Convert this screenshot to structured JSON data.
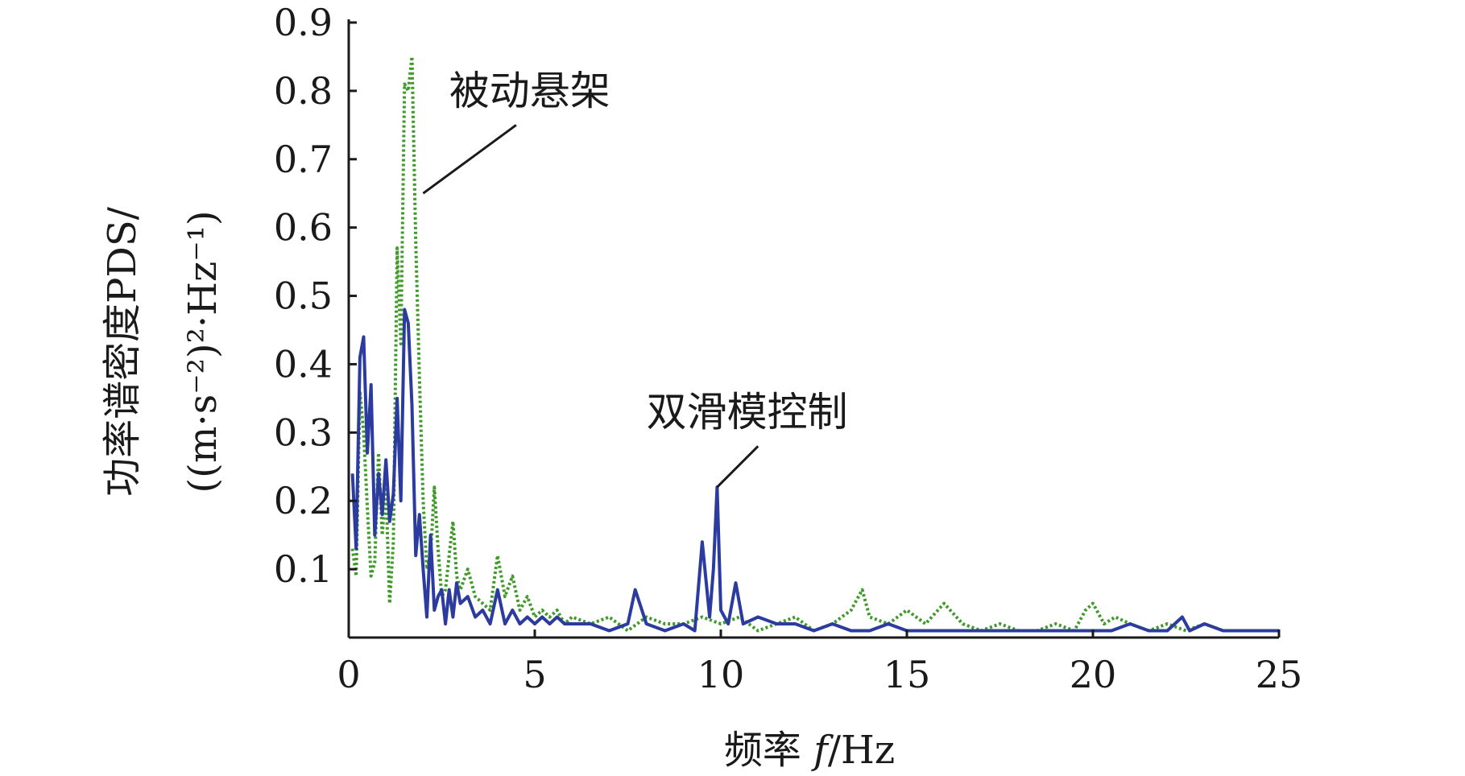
{
  "chart_data": {
    "type": "line",
    "xlabel_prefix": "频率 ",
    "xlabel_var": "f",
    "xlabel_unit": "/Hz",
    "ylabel_line1": "功率谱密度PDS/",
    "ylabel_line2": "((m·s⁻²)²·Hz⁻¹)",
    "xlim": [
      0,
      25
    ],
    "ylim": [
      0,
      0.9
    ],
    "xticks": [
      0,
      5,
      10,
      15,
      20,
      25
    ],
    "xtick_labels": [
      "0",
      "5",
      "10",
      "15",
      "20",
      "25"
    ],
    "yticks": [
      0.1,
      0.2,
      0.3,
      0.4,
      0.5,
      0.6,
      0.7,
      0.8,
      0.9
    ],
    "ytick_labels": [
      "0.1",
      "0.2",
      "0.3",
      "0.4",
      "0.5",
      "0.6",
      "0.7",
      "0.8",
      "0.9"
    ],
    "grid": false,
    "annotations": [
      {
        "text": "被动悬架",
        "series": 0
      },
      {
        "text": "双滑模控制",
        "series": 1
      }
    ],
    "series": [
      {
        "style": "dotted",
        "color": "#3f9a2a",
        "x": [
          0.1,
          0.2,
          0.3,
          0.4,
          0.5,
          0.6,
          0.7,
          0.8,
          0.9,
          1.0,
          1.1,
          1.2,
          1.3,
          1.4,
          1.5,
          1.6,
          1.7,
          1.8,
          1.9,
          2.0,
          2.1,
          2.2,
          2.3,
          2.4,
          2.5,
          2.6,
          2.7,
          2.8,
          2.9,
          3.0,
          3.2,
          3.4,
          3.6,
          3.8,
          4.0,
          4.2,
          4.4,
          4.6,
          4.8,
          5.0,
          5.2,
          5.4,
          5.6,
          5.8,
          6.0,
          6.5,
          7.0,
          7.5,
          8.0,
          8.5,
          9.0,
          9.5,
          10.0,
          10.5,
          11.0,
          11.5,
          12.0,
          12.5,
          13.0,
          13.5,
          13.8,
          14.0,
          14.5,
          15.0,
          15.5,
          16.0,
          16.5,
          17.0,
          17.5,
          18.0,
          18.5,
          19.0,
          19.5,
          19.8,
          20.0,
          20.3,
          20.6,
          21.0,
          21.5,
          22.0,
          22.5,
          23.0,
          23.5,
          24.0,
          24.5,
          25.0
        ],
        "y": [
          0.13,
          0.09,
          0.36,
          0.3,
          0.19,
          0.09,
          0.11,
          0.27,
          0.15,
          0.22,
          0.05,
          0.14,
          0.57,
          0.43,
          0.81,
          0.8,
          0.85,
          0.58,
          0.38,
          0.2,
          0.1,
          0.12,
          0.22,
          0.13,
          0.06,
          0.07,
          0.12,
          0.17,
          0.09,
          0.07,
          0.1,
          0.06,
          0.05,
          0.04,
          0.12,
          0.06,
          0.09,
          0.04,
          0.06,
          0.03,
          0.04,
          0.03,
          0.04,
          0.02,
          0.03,
          0.02,
          0.03,
          0.01,
          0.03,
          0.02,
          0.02,
          0.03,
          0.02,
          0.03,
          0.01,
          0.02,
          0.03,
          0.01,
          0.02,
          0.04,
          0.07,
          0.03,
          0.02,
          0.04,
          0.02,
          0.05,
          0.02,
          0.01,
          0.02,
          0.01,
          0.01,
          0.02,
          0.01,
          0.04,
          0.05,
          0.02,
          0.03,
          0.02,
          0.01,
          0.02,
          0.01,
          0.02,
          0.01,
          0.01,
          0.01,
          0.01
        ]
      },
      {
        "style": "solid",
        "color": "#2b3b9e",
        "x": [
          0.1,
          0.2,
          0.3,
          0.4,
          0.5,
          0.6,
          0.7,
          0.8,
          0.9,
          1.0,
          1.1,
          1.2,
          1.3,
          1.4,
          1.5,
          1.6,
          1.7,
          1.8,
          1.9,
          2.0,
          2.1,
          2.2,
          2.3,
          2.4,
          2.5,
          2.6,
          2.7,
          2.8,
          2.9,
          3.0,
          3.2,
          3.4,
          3.6,
          3.8,
          4.0,
          4.2,
          4.4,
          4.6,
          4.8,
          5.0,
          5.2,
          5.4,
          5.6,
          5.8,
          6.0,
          6.5,
          7.0,
          7.5,
          7.7,
          8.0,
          8.5,
          9.0,
          9.3,
          9.5,
          9.7,
          9.8,
          9.9,
          10.0,
          10.2,
          10.4,
          10.6,
          11.0,
          11.5,
          12.0,
          12.5,
          13.0,
          13.5,
          14.0,
          14.5,
          15.0,
          15.5,
          16.0,
          16.5,
          17.0,
          17.5,
          18.0,
          18.5,
          19.0,
          19.5,
          20.0,
          20.5,
          21.0,
          21.5,
          22.0,
          22.4,
          22.6,
          23.0,
          23.5,
          24.0,
          24.5,
          25.0
        ],
        "y": [
          0.24,
          0.13,
          0.41,
          0.44,
          0.27,
          0.37,
          0.15,
          0.24,
          0.18,
          0.26,
          0.17,
          0.21,
          0.35,
          0.2,
          0.48,
          0.46,
          0.34,
          0.12,
          0.18,
          0.1,
          0.03,
          0.15,
          0.04,
          0.06,
          0.07,
          0.02,
          0.07,
          0.03,
          0.08,
          0.05,
          0.06,
          0.03,
          0.04,
          0.02,
          0.07,
          0.02,
          0.04,
          0.02,
          0.03,
          0.02,
          0.03,
          0.02,
          0.03,
          0.02,
          0.02,
          0.02,
          0.01,
          0.02,
          0.07,
          0.02,
          0.01,
          0.02,
          0.01,
          0.14,
          0.03,
          0.1,
          0.22,
          0.04,
          0.02,
          0.08,
          0.02,
          0.03,
          0.02,
          0.02,
          0.01,
          0.02,
          0.01,
          0.01,
          0.02,
          0.01,
          0.01,
          0.01,
          0.01,
          0.01,
          0.01,
          0.01,
          0.01,
          0.01,
          0.01,
          0.01,
          0.01,
          0.02,
          0.01,
          0.01,
          0.03,
          0.01,
          0.02,
          0.01,
          0.01,
          0.01,
          0.01
        ]
      }
    ]
  }
}
